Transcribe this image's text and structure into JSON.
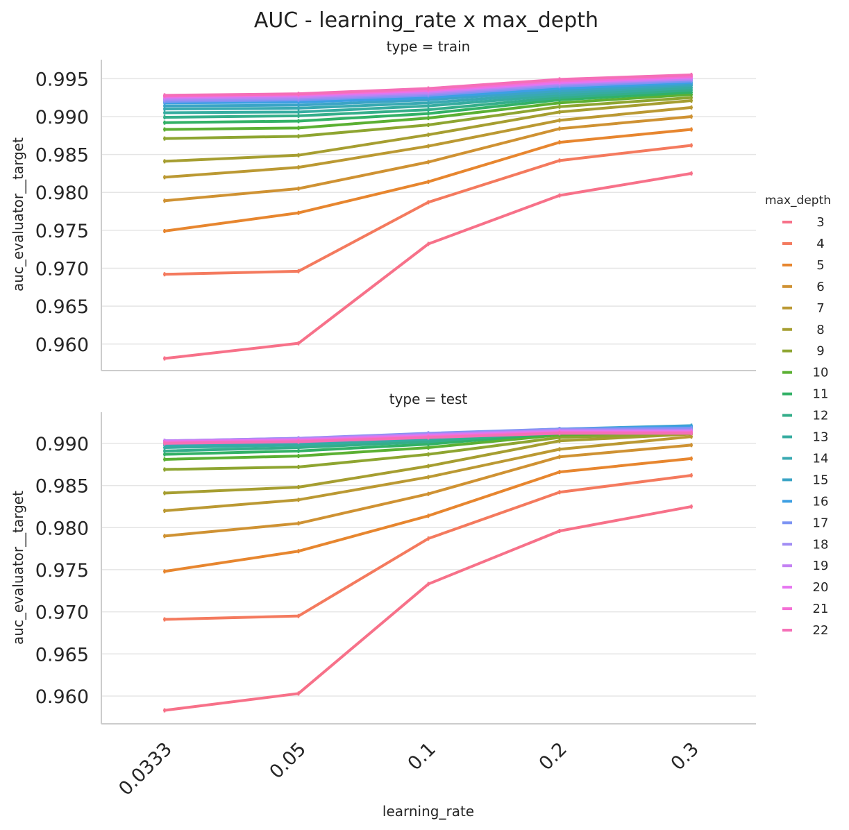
{
  "chart_data": {
    "type": "line",
    "title": "AUC - learning_rate x max_depth",
    "xlabel": "learning_rate",
    "ylabel": "auc_evaluator__target",
    "categories": [
      "0.0333",
      "0.05",
      "0.1",
      "0.2",
      "0.3"
    ],
    "grid": true,
    "legend": {
      "title": "max_depth",
      "placement": "right"
    },
    "series_colors": [
      "#f77189",
      "#f47a5e",
      "#e7862f",
      "#cf9233",
      "#bb9933",
      "#a69e31",
      "#8ea531",
      "#5bb033",
      "#32b166",
      "#34ae8a",
      "#36aca0",
      "#38a9b2",
      "#3ba4c6",
      "#3d9fe3",
      "#7d94f3",
      "#a08cf4",
      "#c482f3",
      "#e674f1",
      "#f46fd5",
      "#f56fb7"
    ],
    "facets": [
      {
        "title": "type = train",
        "ylim": [
          0.9565,
          0.9975
        ],
        "yticks": [
          "0.960",
          "0.965",
          "0.970",
          "0.975",
          "0.980",
          "0.985",
          "0.990",
          "0.995"
        ],
        "series": [
          {
            "name": "3",
            "values": [
              0.9581,
              0.9601,
              0.9732,
              0.9796,
              0.9825
            ]
          },
          {
            "name": "4",
            "values": [
              0.9692,
              0.9696,
              0.9787,
              0.9842,
              0.9862
            ]
          },
          {
            "name": "5",
            "values": [
              0.9749,
              0.9773,
              0.9814,
              0.9866,
              0.9883
            ]
          },
          {
            "name": "6",
            "values": [
              0.9789,
              0.9805,
              0.984,
              0.9884,
              0.99
            ]
          },
          {
            "name": "7",
            "values": [
              0.982,
              0.9833,
              0.9861,
              0.9895,
              0.9912
            ]
          },
          {
            "name": "8",
            "values": [
              0.9841,
              0.9849,
              0.9876,
              0.9906,
              0.9921
            ]
          },
          {
            "name": "9",
            "values": [
              0.9871,
              0.9874,
              0.9889,
              0.9913,
              0.9925
            ]
          },
          {
            "name": "10",
            "values": [
              0.9883,
              0.9885,
              0.9898,
              0.9918,
              0.9929
            ]
          },
          {
            "name": "11",
            "values": [
              0.9892,
              0.9894,
              0.9904,
              0.9922,
              0.9932
            ]
          },
          {
            "name": "12",
            "values": [
              0.9899,
              0.9901,
              0.9909,
              0.9925,
              0.9935
            ]
          },
          {
            "name": "13",
            "values": [
              0.9905,
              0.9906,
              0.9914,
              0.9928,
              0.9938
            ]
          },
          {
            "name": "14",
            "values": [
              0.991,
              0.9911,
              0.9918,
              0.9931,
              0.9941
            ]
          },
          {
            "name": "15",
            "values": [
              0.9914,
              0.9915,
              0.9922,
              0.9934,
              0.9943
            ]
          },
          {
            "name": "16",
            "values": [
              0.9918,
              0.9919,
              0.9925,
              0.9937,
              0.9945
            ]
          },
          {
            "name": "17",
            "values": [
              0.992,
              0.9922,
              0.9928,
              0.994,
              0.9947
            ]
          },
          {
            "name": "18",
            "values": [
              0.9922,
              0.9924,
              0.993,
              0.9942,
              0.9949
            ]
          },
          {
            "name": "19",
            "values": [
              0.9924,
              0.9926,
              0.9932,
              0.9944,
              0.995
            ]
          },
          {
            "name": "20",
            "values": [
              0.9926,
              0.9928,
              0.9934,
              0.9945,
              0.9952
            ]
          },
          {
            "name": "21",
            "values": [
              0.9927,
              0.9929,
              0.9935,
              0.9947,
              0.9953
            ]
          },
          {
            "name": "22",
            "values": [
              0.9928,
              0.993,
              0.9937,
              0.9949,
              0.9955
            ]
          }
        ]
      },
      {
        "title": "type = test",
        "ylim": [
          0.9567,
          0.9937
        ],
        "yticks": [
          "0.960",
          "0.965",
          "0.970",
          "0.975",
          "0.980",
          "0.985",
          "0.990"
        ],
        "series": [
          {
            "name": "3",
            "values": [
              0.9583,
              0.9603,
              0.9733,
              0.9796,
              0.9825
            ]
          },
          {
            "name": "4",
            "values": [
              0.9691,
              0.9695,
              0.9787,
              0.9842,
              0.9862
            ]
          },
          {
            "name": "5",
            "values": [
              0.9748,
              0.9772,
              0.9814,
              0.9866,
              0.9882
            ]
          },
          {
            "name": "6",
            "values": [
              0.979,
              0.9805,
              0.984,
              0.9884,
              0.9898
            ]
          },
          {
            "name": "7",
            "values": [
              0.982,
              0.9833,
              0.986,
              0.9893,
              0.9908
            ]
          },
          {
            "name": "8",
            "values": [
              0.9841,
              0.9848,
              0.9873,
              0.9903,
              0.9911
            ]
          },
          {
            "name": "9",
            "values": [
              0.9869,
              0.9872,
              0.9887,
              0.9907,
              0.9912
            ]
          },
          {
            "name": "10",
            "values": [
              0.9881,
              0.9885,
              0.9895,
              0.991,
              0.9914
            ]
          },
          {
            "name": "11",
            "values": [
              0.9887,
              0.9891,
              0.9899,
              0.9912,
              0.9916
            ]
          },
          {
            "name": "12",
            "values": [
              0.9891,
              0.9895,
              0.9902,
              0.9914,
              0.9918
            ]
          },
          {
            "name": "13",
            "values": [
              0.9895,
              0.9898,
              0.9905,
              0.9915,
              0.9919
            ]
          },
          {
            "name": "14",
            "values": [
              0.9898,
              0.9901,
              0.9907,
              0.9916,
              0.992
            ]
          },
          {
            "name": "15",
            "values": [
              0.99,
              0.9903,
              0.9909,
              0.9917,
              0.9921
            ]
          },
          {
            "name": "16",
            "values": [
              0.9902,
              0.9905,
              0.9911,
              0.9917,
              0.992
            ]
          },
          {
            "name": "17",
            "values": [
              0.9903,
              0.9906,
              0.9912,
              0.9917,
              0.9918
            ]
          },
          {
            "name": "18",
            "values": [
              0.9903,
              0.9906,
              0.9911,
              0.9916,
              0.9916
            ]
          },
          {
            "name": "19",
            "values": [
              0.9903,
              0.9905,
              0.991,
              0.9915,
              0.9915
            ]
          },
          {
            "name": "20",
            "values": [
              0.9902,
              0.9904,
              0.9909,
              0.9914,
              0.9914
            ]
          },
          {
            "name": "21",
            "values": [
              0.9901,
              0.9903,
              0.9908,
              0.9913,
              0.9913
            ]
          },
          {
            "name": "22",
            "values": [
              0.99,
              0.9902,
              0.9907,
              0.9912,
              0.9912
            ]
          }
        ]
      }
    ]
  }
}
